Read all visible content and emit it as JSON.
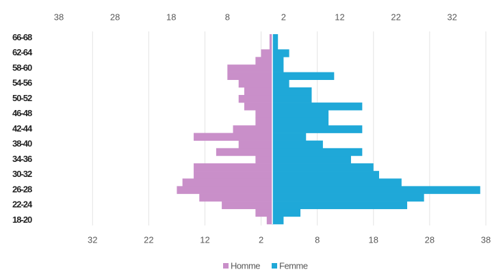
{
  "chart_data": {
    "type": "pyramid",
    "categories": [
      "18-20",
      null,
      "22-24",
      null,
      "26-28",
      null,
      "30-32",
      null,
      "34-36",
      null,
      "38-40",
      null,
      "42-44",
      null,
      "46-48",
      null,
      "50-52",
      null,
      "54-56",
      null,
      "58-60",
      null,
      "62-64",
      null,
      "66-68"
    ],
    "series": [
      {
        "name": "Homme",
        "color": "#c98fc9",
        "values": [
          -1,
          -3,
          -9,
          -13,
          -17,
          -16,
          -14,
          -14,
          -3,
          -10,
          -6,
          -14,
          -7,
          -3,
          -3,
          -5,
          -6,
          -5,
          -6,
          -8,
          -8,
          -3,
          -2,
          -0.5,
          -0.5
        ]
      },
      {
        "name": "Femme",
        "color": "#1fa8d8",
        "values": [
          2,
          5,
          24,
          27,
          37,
          23,
          19,
          18,
          14,
          16,
          9,
          6,
          16,
          10,
          10,
          16,
          7,
          7,
          3,
          11,
          2,
          2,
          3,
          1,
          1
        ]
      }
    ],
    "xlim": [
      -38,
      38
    ],
    "xticks": [
      {
        "value": -32,
        "label": "32"
      },
      {
        "value": -22,
        "label": "22"
      },
      {
        "value": -12,
        "label": "12"
      },
      {
        "value": -2,
        "label": "2"
      },
      8,
      18,
      28,
      38
    ],
    "x2ticks": [
      {
        "value": -38,
        "label": "38"
      },
      {
        "value": -28,
        "label": "28"
      },
      {
        "value": -18,
        "label": "18"
      },
      {
        "value": -8,
        "label": "8"
      },
      2,
      12,
      22,
      32
    ],
    "grid": true,
    "legend": "bottom"
  }
}
